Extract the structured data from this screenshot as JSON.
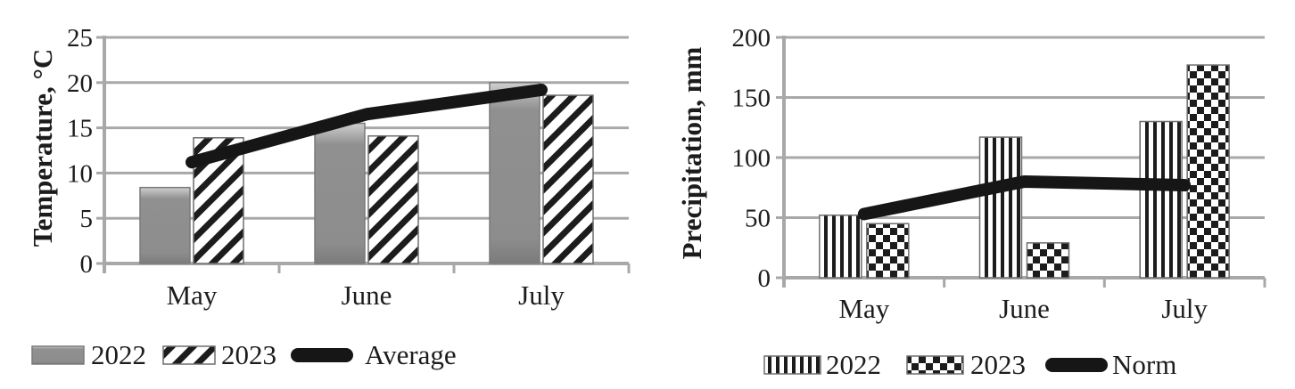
{
  "page": {
    "background": "#ffffff",
    "description": "Two monthly climate charts side by side"
  },
  "colors": {
    "grid": "#a8a8a8",
    "axis": "#a8a8a8",
    "text": "#1c1c1c",
    "bar_gray": "#8e8e8e",
    "pattern_black": "#1c1c1c",
    "line_black": "#161616",
    "background": "#ffffff"
  },
  "chart_data": [
    {
      "id": "temperature",
      "type": "bar",
      "ylabel": "Temperature, °C",
      "xlabel": "",
      "categories": [
        "May",
        "June",
        "July"
      ],
      "ylim": [
        0,
        25
      ],
      "yticks": [
        0,
        5,
        10,
        15,
        20,
        25
      ],
      "grid": true,
      "legend_position": "bottom",
      "series": [
        {
          "name": "2022",
          "type": "bar",
          "pattern": "solid-gray-bevel",
          "values": [
            8.4,
            15.5,
            20.0
          ]
        },
        {
          "name": "2023",
          "type": "bar",
          "pattern": "diagonal-hatch",
          "values": [
            13.9,
            14.1,
            18.6
          ]
        },
        {
          "name": "Average",
          "type": "line",
          "color": "#161616",
          "values": [
            11.2,
            16.5,
            19.2
          ]
        }
      ]
    },
    {
      "id": "precipitation",
      "type": "bar",
      "ylabel": "Precipitation, mm",
      "xlabel": "",
      "categories": [
        "May",
        "June",
        "July"
      ],
      "ylim": [
        0,
        200
      ],
      "yticks": [
        0,
        50,
        100,
        150,
        200
      ],
      "grid": true,
      "legend_position": "bottom",
      "series": [
        {
          "name": "2022",
          "type": "bar",
          "pattern": "vertical-stripes",
          "values": [
            52,
            117,
            130
          ]
        },
        {
          "name": "2023",
          "type": "bar",
          "pattern": "checkerboard",
          "values": [
            45,
            29,
            177
          ]
        },
        {
          "name": "Norm",
          "type": "line",
          "color": "#161616",
          "values": [
            53,
            80,
            77
          ]
        }
      ]
    }
  ]
}
